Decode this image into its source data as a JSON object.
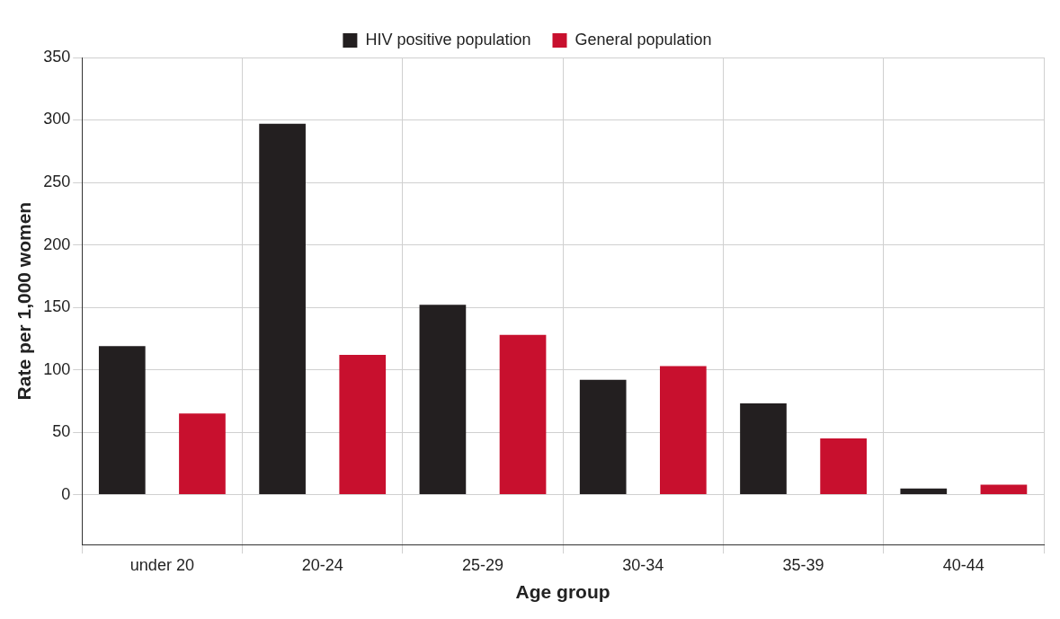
{
  "chart_data": {
    "type": "bar",
    "xlabel": "Age group",
    "ylabel": "Rate per 1,000 women",
    "categories": [
      "under 20",
      "20-24",
      "25-29",
      "30-34",
      "35-39",
      "40-44"
    ],
    "series": [
      {
        "name": "HIV positive population",
        "color": "#231f20",
        "values": [
          119,
          297,
          152,
          92,
          73,
          5
        ]
      },
      {
        "name": "General population",
        "color": "#c8102e",
        "values": [
          65,
          112,
          128,
          103,
          45,
          8
        ]
      }
    ],
    "ylim": [
      -40,
      350
    ],
    "yticks": [
      0,
      50,
      100,
      150,
      200,
      250,
      300,
      350
    ],
    "grid": true,
    "legend": "top"
  }
}
